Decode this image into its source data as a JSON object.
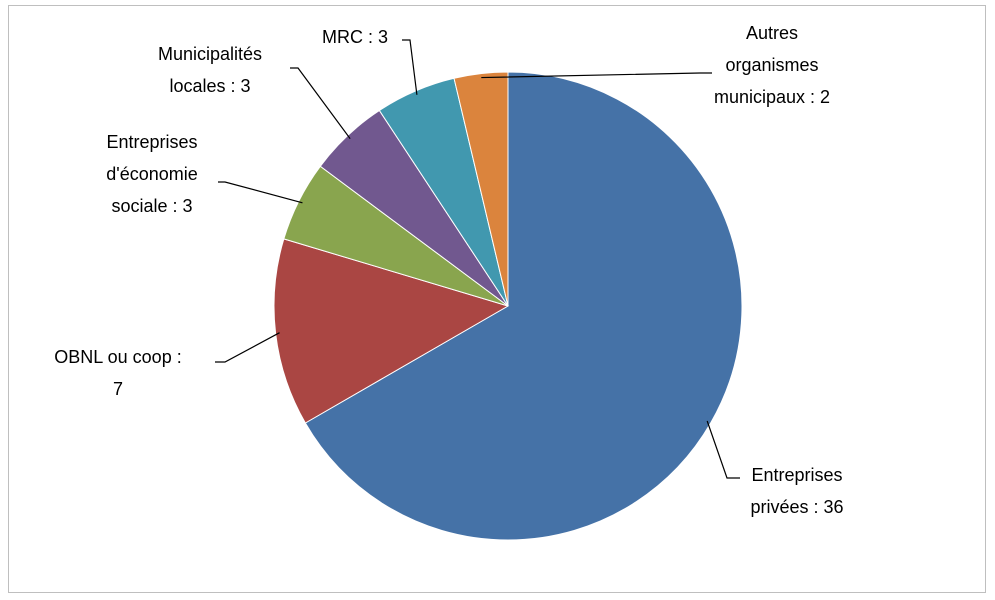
{
  "chart_data": {
    "type": "pie",
    "labels": [
      [
        "Entreprises",
        "privées : 36"
      ],
      [
        "OBNL ou coop :",
        "7"
      ],
      [
        "Entreprises",
        "d'économie",
        "sociale : 3"
      ],
      [
        "Municipalités",
        "locales : 3"
      ],
      [
        "MRC : 3"
      ],
      [
        "Autres",
        "organismes",
        "municipaux : 2"
      ]
    ],
    "values": [
      36,
      7,
      3,
      3,
      3,
      2
    ],
    "colors": [
      "#4572a7",
      "#aa4643",
      "#89a54e",
      "#71588f",
      "#4198af",
      "#db843d"
    ]
  }
}
